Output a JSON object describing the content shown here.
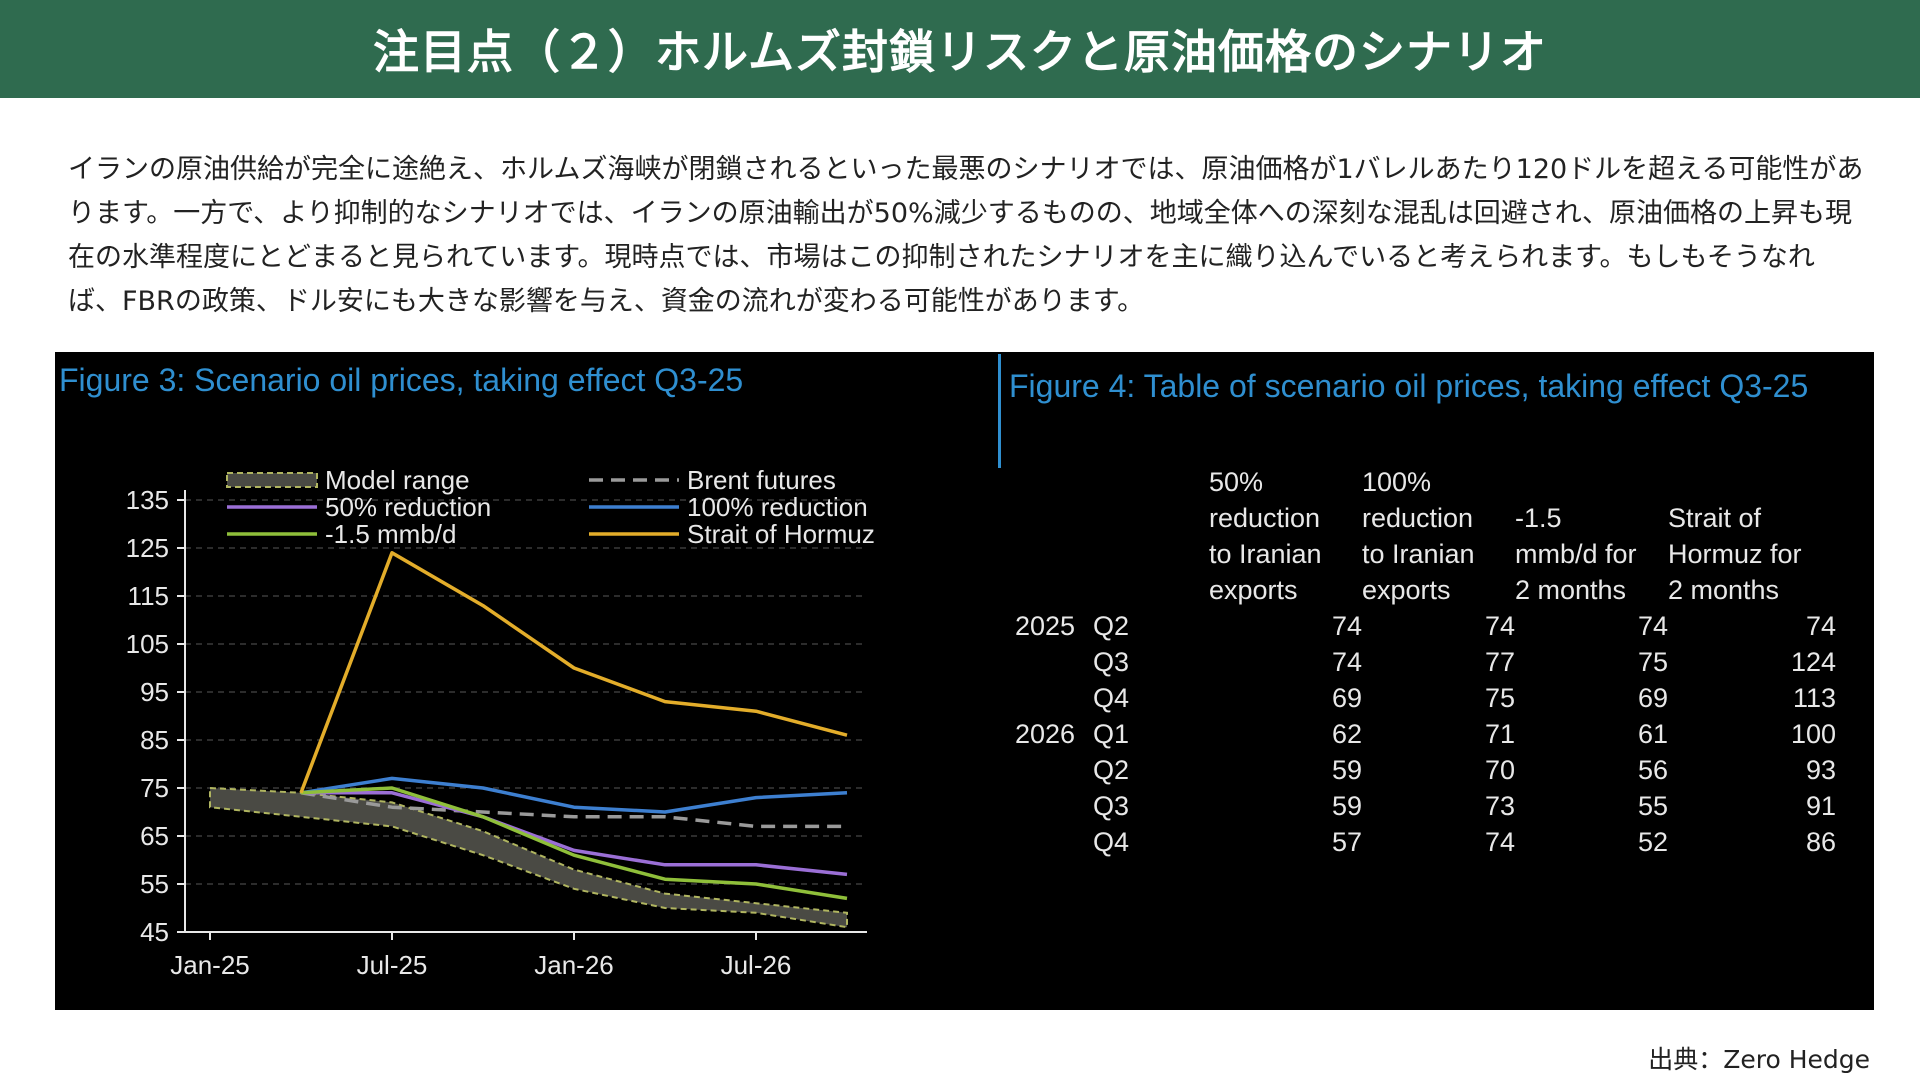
{
  "header": {
    "title": "注目点（２）ホルムズ封鎖リスクと原油価格のシナリオ"
  },
  "body_text": "イランの原油供給が完全に途絶え、ホルムズ海峡が閉鎖されるといった最悪のシナリオでは、原油価格が1バレルあたり120ドルを超える可能性があります。一方で、より抑制的なシナリオでは、イランの原油輸出が50%減少するものの、地域全体への深刻な混乱は回避され、原油価格の上昇も現在の水準程度にとどまると見られています。現時点では、市場はこの抑制されたシナリオを主に織り込んでいると考えられます。もしもそうなれば、FBRの政策、ドル安にも大きな影響を与え、資金の流れが変わる可能性があります。",
  "source": "出典：Zero Hedge",
  "chart_data": [
    {
      "type": "line",
      "title": "Figure 3: Scenario oil prices, taking effect Q3-25",
      "x": [
        "Jan-25",
        "Apr-25",
        "Jul-25",
        "Oct-25",
        "Jan-26",
        "Apr-26",
        "Jul-26",
        "Oct-26"
      ],
      "x_ticks": [
        "Jan-25",
        "Jul-25",
        "Jan-26",
        "Jul-26"
      ],
      "ylim": [
        45,
        135
      ],
      "y_ticks": [
        45,
        55,
        65,
        75,
        85,
        95,
        105,
        115,
        125,
        135
      ],
      "grid": "horizontal dashed",
      "legend": "top",
      "colors": {
        "model_range": "#b0b560",
        "brent": "#9a9a9a",
        "r50": "#9b6fd6",
        "r100": "#3d7fd0",
        "r15": "#8fbf3a",
        "hormuz": "#e3ad2a"
      },
      "series": [
        {
          "name": "Model range",
          "key": "model_range",
          "upper": [
            75,
            74,
            72,
            66,
            58,
            53,
            51,
            49
          ],
          "lower": [
            71,
            69,
            67,
            61,
            54,
            50,
            49,
            46
          ]
        },
        {
          "name": "Brent futures",
          "key": "brent",
          "values": [
            null,
            74,
            71,
            70,
            69,
            69,
            67,
            67
          ]
        },
        {
          "name": "50% reduction",
          "key": "r50",
          "values": [
            null,
            74,
            74,
            69,
            62,
            59,
            59,
            57
          ]
        },
        {
          "name": "100% reduction",
          "key": "r100",
          "values": [
            null,
            74,
            77,
            75,
            71,
            70,
            73,
            74
          ]
        },
        {
          "name": "-1.5 mmb/d",
          "key": "r15",
          "values": [
            null,
            74,
            75,
            69,
            61,
            56,
            55,
            52
          ]
        },
        {
          "name": "Strait of Hormuz",
          "key": "hormuz",
          "values": [
            null,
            74,
            124,
            113,
            100,
            93,
            91,
            86
          ]
        }
      ]
    },
    {
      "type": "table",
      "title": "Figure 4: Table of scenario oil prices, taking effect Q3-25",
      "columns": [
        "50% reduction to Iranian exports",
        "100% reduction to Iranian exports",
        "-1.5 mmb/d for 2 months",
        "Strait of Hormuz for 2 months"
      ],
      "column_lines": [
        [
          "50%",
          "reduction",
          "to Iranian",
          "exports"
        ],
        [
          "100%",
          "reduction",
          "to Iranian",
          "exports"
        ],
        [
          "",
          "-1.5",
          "mmb/d for",
          "2 months"
        ],
        [
          "",
          "Strait of",
          "Hormuz for",
          "2 months"
        ]
      ],
      "rows": [
        {
          "year": "2025",
          "quarter": "Q2",
          "values": [
            74,
            74,
            74,
            74
          ]
        },
        {
          "year": "",
          "quarter": "Q3",
          "values": [
            74,
            77,
            75,
            124
          ]
        },
        {
          "year": "",
          "quarter": "Q4",
          "values": [
            69,
            75,
            69,
            113
          ]
        },
        {
          "year": "2026",
          "quarter": "Q1",
          "values": [
            62,
            71,
            61,
            100
          ]
        },
        {
          "year": "",
          "quarter": "Q2",
          "values": [
            59,
            70,
            56,
            93
          ]
        },
        {
          "year": "",
          "quarter": "Q3",
          "values": [
            59,
            73,
            55,
            91
          ]
        },
        {
          "year": "",
          "quarter": "Q4",
          "values": [
            57,
            74,
            52,
            86
          ]
        }
      ]
    }
  ]
}
